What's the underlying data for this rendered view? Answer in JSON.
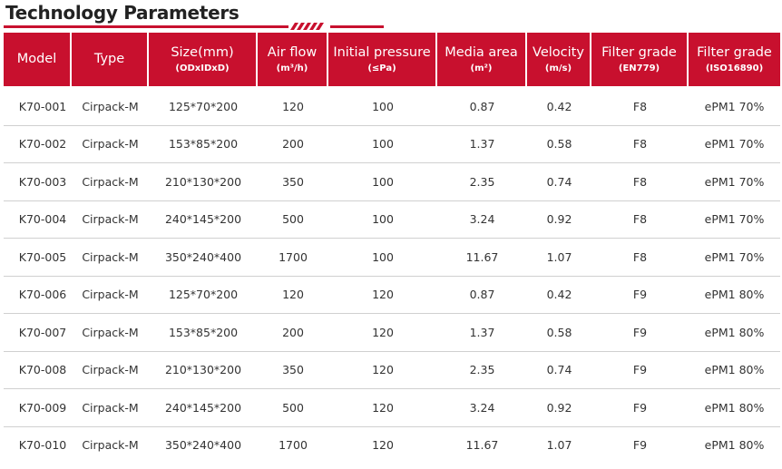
{
  "page": {
    "title": "Technology Parameters",
    "accent_color": "#c8102e"
  },
  "table": {
    "columns": [
      {
        "label": "Model",
        "sub": ""
      },
      {
        "label": "Type",
        "sub": ""
      },
      {
        "label": "Size(mm)",
        "sub": "(ODxIDxD)"
      },
      {
        "label": "Air flow",
        "sub": "(m³/h)"
      },
      {
        "label": "Initial pressure",
        "sub": "(≤Pa)"
      },
      {
        "label": "Media area",
        "sub": "(m²)"
      },
      {
        "label": "Velocity",
        "sub": "(m/s)"
      },
      {
        "label": "Filter grade",
        "sub": "(EN779)"
      },
      {
        "label": "Filter grade",
        "sub": "(ISO16890)"
      }
    ],
    "rows": [
      [
        "K70-001",
        "Cirpack-M",
        "125*70*200",
        "120",
        "100",
        "0.87",
        "0.42",
        "F8",
        "ePM1 70%"
      ],
      [
        "K70-002",
        "Cirpack-M",
        "153*85*200",
        "200",
        "100",
        "1.37",
        "0.58",
        "F8",
        "ePM1 70%"
      ],
      [
        "K70-003",
        "Cirpack-M",
        "210*130*200",
        "350",
        "100",
        "2.35",
        "0.74",
        "F8",
        "ePM1 70%"
      ],
      [
        "K70-004",
        "Cirpack-M",
        "240*145*200",
        "500",
        "100",
        "3.24",
        "0.92",
        "F8",
        "ePM1 70%"
      ],
      [
        "K70-005",
        "Cirpack-M",
        "350*240*400",
        "1700",
        "100",
        "11.67",
        "1.07",
        "F8",
        "ePM1 70%"
      ],
      [
        "K70-006",
        "Cirpack-M",
        "125*70*200",
        "120",
        "120",
        "0.87",
        "0.42",
        "F9",
        "ePM1 80%"
      ],
      [
        "K70-007",
        "Cirpack-M",
        "153*85*200",
        "200",
        "120",
        "1.37",
        "0.58",
        "F9",
        "ePM1 80%"
      ],
      [
        "K70-008",
        "Cirpack-M",
        "210*130*200",
        "350",
        "120",
        "2.35",
        "0.74",
        "F9",
        "ePM1 80%"
      ],
      [
        "K70-009",
        "Cirpack-M",
        "240*145*200",
        "500",
        "120",
        "3.24",
        "0.92",
        "F9",
        "ePM1 80%"
      ],
      [
        "K70-010",
        "Cirpack-M",
        "350*240*400",
        "1700",
        "120",
        "11.67",
        "1.07",
        "F9",
        "ePM1 80%"
      ]
    ]
  }
}
